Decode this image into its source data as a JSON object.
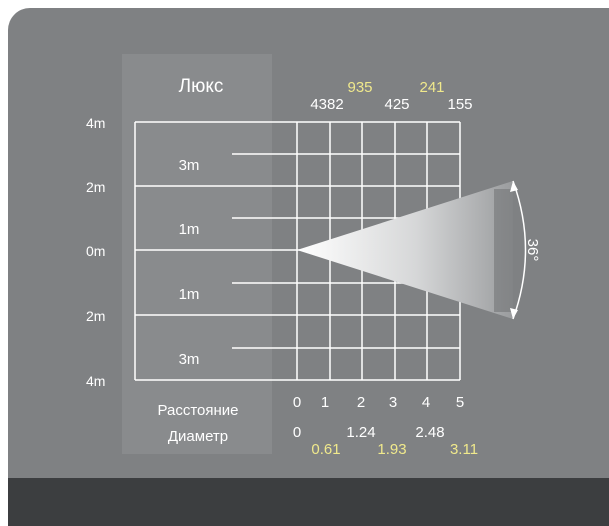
{
  "colors": {
    "background": "#7f8183",
    "panel": "#898b8d",
    "footer": "#3c3e40",
    "lines": "#ffffff",
    "text_primary": "#ffffff",
    "text_highlight": "#f0e98c",
    "beam_light": "#ffffff",
    "beam_dark": "#6f7173"
  },
  "diagram": {
    "lux_title": "Люкс",
    "lux_values_upper": [
      "935",
      "241"
    ],
    "lux_values_lower": [
      "4382",
      "425",
      "155"
    ],
    "vertical_scale": [
      "4m",
      "2m",
      "0m",
      "2m",
      "4m"
    ],
    "height_labels": [
      "3m",
      "1m",
      "1m",
      "3m"
    ],
    "distance_label": "Расстояние",
    "diameter_label": "Диаметр",
    "distance_ticks": [
      "0",
      "1",
      "2",
      "3",
      "4",
      "5"
    ],
    "diameter_values_white": [
      "0",
      "1.24",
      "2.48"
    ],
    "diameter_values_yellow": [
      "0.61",
      "1.93",
      "3.11"
    ],
    "beam_angle": "36°"
  }
}
